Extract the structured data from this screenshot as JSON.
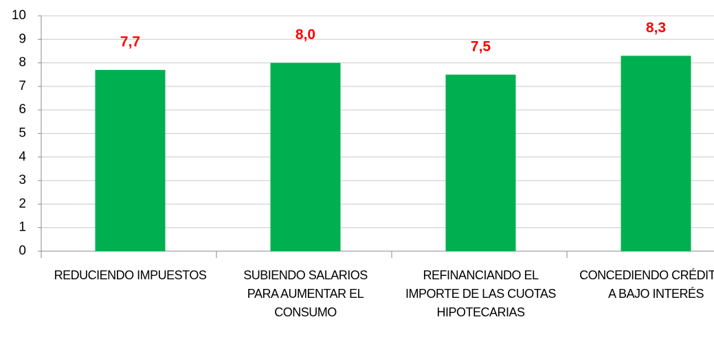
{
  "chart_data": {
    "type": "bar",
    "categories": [
      "REDUCIENDO IMPUESTOS",
      "SUBIENDO SALARIOS PARA AUMENTAR EL CONSUMO",
      "REFINANCIANDO EL IMPORTE DE LAS CUOTAS HIPOTECARIAS",
      "CONCEDIENDO CRÉDITOS A BAJO INTERÉS"
    ],
    "values": [
      7.7,
      8.0,
      7.5,
      8.3
    ],
    "value_labels": [
      "7,7",
      "8,0",
      "7,5",
      "8,3"
    ],
    "color": "#00b050",
    "value_label_color": "#ff0000",
    "ylim": [
      0,
      10
    ],
    "yticks": [
      0,
      1,
      2,
      3,
      4,
      5,
      6,
      7,
      8,
      9,
      10
    ],
    "grid": true
  }
}
